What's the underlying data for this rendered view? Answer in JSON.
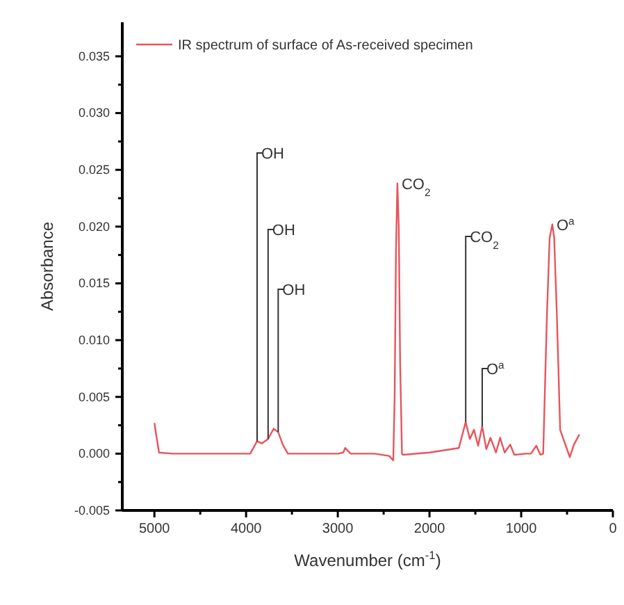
{
  "chart_data": {
    "type": "line",
    "xlabel": "Wavenumber (cm$^{-1}$)",
    "ylabel": "Absorbance",
    "xlim": [
      5350,
      0
    ],
    "xticks": [
      5000,
      {
        "value": 4500,
        "label": null
      },
      4000,
      {
        "value": 3500,
        "label": null
      },
      3000,
      {
        "value": 2500,
        "label": null
      },
      2000,
      {
        "value": 1500,
        "label": null
      },
      1000,
      {
        "value": 500,
        "label": null
      },
      0
    ],
    "ylim": [
      -0.005,
      0.038
    ],
    "yticks": [
      {
        "value": -0.005,
        "label": "-0.005"
      },
      {
        "value": -0.0025,
        "label": null
      },
      {
        "value": 0,
        "label": "0.000"
      },
      {
        "value": 0.0025,
        "label": null
      },
      {
        "value": 0.005,
        "label": "0.005"
      },
      {
        "value": 0.0075,
        "label": null
      },
      {
        "value": 0.01,
        "label": "0.010"
      },
      {
        "value": 0.0125,
        "label": null
      },
      {
        "value": 0.015,
        "label": "0.015"
      },
      {
        "value": 0.0175,
        "label": null
      },
      {
        "value": 0.02,
        "label": "0.020"
      },
      {
        "value": 0.0225,
        "label": null
      },
      {
        "value": 0.025,
        "label": "0.025"
      },
      {
        "value": 0.0275,
        "label": null
      },
      {
        "value": 0.03,
        "label": "0.030"
      },
      {
        "value": 0.0325,
        "label": null
      },
      {
        "value": 0.035,
        "label": "0.035"
      }
    ],
    "grid": false,
    "legend": "top left",
    "marker": "none",
    "line_style": "solid",
    "series": [
      {
        "name": "IR spectrum of surface of As-received specimen",
        "color": "#e8545a",
        "x": [
          5000,
          4950,
          4800,
          4500,
          4200,
          3955,
          3880,
          3830,
          3760,
          3700,
          3650,
          3600,
          3545,
          3300,
          3000,
          2940,
          2920,
          2860,
          2600,
          2440,
          2395,
          2380,
          2365,
          2350,
          2335,
          2320,
          2300,
          2290,
          2000,
          1680,
          1605,
          1560,
          1515,
          1470,
          1425,
          1380,
          1335,
          1275,
          1230,
          1180,
          1120,
          1075,
          950,
          895,
          835,
          790,
          760,
          720,
          690,
          660,
          640,
          610,
          575,
          470,
          425,
          365
        ],
        "values": [
          0.0027,
          0.0001,
          0.0,
          0.0,
          0.0,
          0.0,
          0.0011,
          0.0009,
          0.0013,
          0.0022,
          0.0019,
          0.0008,
          0.0,
          0.0,
          0.0,
          0.0001,
          0.0005,
          0.0,
          0.0,
          -0.0002,
          -0.0006,
          0.005,
          0.018,
          0.0238,
          0.02,
          0.008,
          0.0,
          -0.0001,
          0.0001,
          0.0005,
          0.0028,
          0.0013,
          0.0021,
          0.0007,
          0.0024,
          0.0004,
          0.0014,
          0.0001,
          0.0014,
          0.0001,
          0.0008,
          -0.0001,
          0.0,
          0.0,
          0.0007,
          -0.0001,
          0.0,
          0.012,
          0.019,
          0.0202,
          0.019,
          0.012,
          0.0021,
          -0.0003,
          0.0008,
          0.0017
        ]
      }
    ],
    "annotations": [
      {
        "text": "OH",
        "x": 3880,
        "y": 0.0011
      },
      {
        "text": "OH",
        "x": 3760,
        "y": 0.0013
      },
      {
        "text": "OH",
        "x": 3650,
        "y": 0.0019
      },
      {
        "text": "CO$_{2}$",
        "x": 2350,
        "y": 0.0238
      },
      {
        "text": "CO$_{2}$",
        "x": 1605,
        "y": 0.0028
      },
      {
        "text": "O$^{a}$",
        "x": 1425,
        "y": 0.0024
      },
      {
        "text": "O$^{a}$",
        "x": 660,
        "y": 0.0202
      }
    ]
  }
}
